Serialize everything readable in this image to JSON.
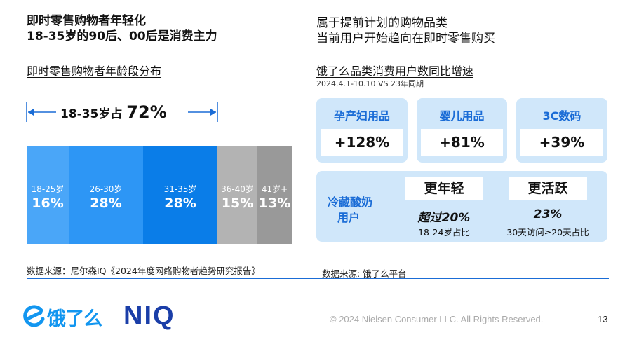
{
  "left": {
    "headline_1": "即时零售购物者年轻化",
    "headline_2": "18-35岁的90后、00后是消费主力",
    "subtitle": "即时零售购物者年龄段分布",
    "annotation_prefix": "18-35岁占",
    "annotation_pct": "72%",
    "source": "数据来源：尼尔森IQ《2024年度网络购物者趋势研究报告》"
  },
  "right": {
    "headline_1": "属于提前计划的购物品类",
    "headline_2": "当前用户开始趋向在即时零售购买",
    "subtitle": "饿了么品类消费用户数同比增速",
    "date_note": "2024.4.1-10.10 VS 23年同期",
    "categories": [
      {
        "label": "孕产妇用品",
        "value": "+128%"
      },
      {
        "label": "婴儿用品",
        "value": "+81%"
      },
      {
        "label": "3C数码",
        "value": "+39%"
      }
    ],
    "panel": {
      "label_1": "冷藏酸奶",
      "label_2": "用户",
      "item1_title": "更年轻",
      "item1_value": "超过20%",
      "item1_caption": "18-24岁占比",
      "item2_title": "更活跃",
      "item2_value": "23%",
      "item2_caption": "30天访问≥20天占比"
    },
    "source": "数据来源: 饿了么平台"
  },
  "footer": {
    "logo_eleme": "饿了么",
    "logo_niq": "NIQ",
    "copyright": "© 2024 Nielsen Consumer LLC. All Rights Reserved.",
    "page_number": "13"
  },
  "colors": {
    "accent_blue": "#1a6cd6",
    "bar_light": "#4aa6f8",
    "bar_mid": "#2d96f5",
    "bar_dark": "#0a7de8",
    "bar_gray_light": "#b3b3b3",
    "bar_gray_dark": "#999999",
    "tile_bg": "#d0e7fa"
  },
  "chart_data": {
    "type": "bar",
    "title": "即时零售购物者年龄段分布",
    "categories": [
      "18-25岁",
      "26-30岁",
      "31-35岁",
      "36-40岁",
      "41岁+"
    ],
    "values": [
      16,
      28,
      28,
      15,
      13
    ],
    "value_labels": [
      "16%",
      "28%",
      "28%",
      "15%",
      "13%"
    ],
    "stacked_100_percent": true
  }
}
